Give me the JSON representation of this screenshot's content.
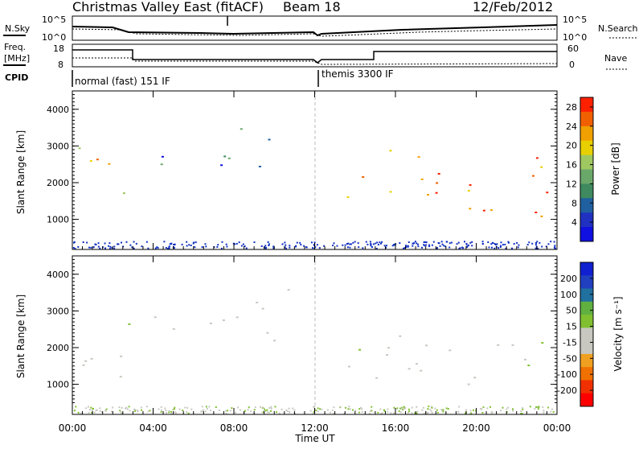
{
  "header": {
    "station": "Christmas Valley East (fitACF)",
    "beam": "Beam 18",
    "date": "12/Feb/2012"
  },
  "panel_labels": {
    "nsky": "N.Sky",
    "nsearch": "N.Search",
    "freq": "Freq.",
    "freq_unit": "[MHz]",
    "nave": "Nave",
    "cpid": "CPID",
    "cpid_first": "normal (fast) 151 IF",
    "cpid_second": "themis 3300 IF",
    "noise_top_left": "10^5",
    "noise_bot_left": "10^0",
    "noise_top_right": "10^5",
    "noise_bot_right": "10^0",
    "freq_top": "18",
    "freq_bot": "8",
    "nave_top": "60",
    "nave_bot": "0"
  },
  "colors": {
    "power": [
      "#1010e0",
      "#2030c0",
      "#2060a0",
      "#3f8a5f",
      "#6aa86a",
      "#a0c860",
      "#e8d000",
      "#f0a000",
      "#f06000",
      "#ff2000"
    ],
    "velocity": [
      "#1020d0",
      "#2040c0",
      "#2070a0",
      "#60b040",
      "#80c030",
      "#c8c8c0",
      "#c8c8c0",
      "#f0a020",
      "#f07000",
      "#f03000",
      "#ff0000"
    ]
  },
  "chart_data": [
    {
      "type": "heatmap",
      "ylabel": "Slant Range [km]",
      "xlabel": "Time UT",
      "y_ticks": [
        "1000",
        "2000",
        "3000",
        "4000"
      ],
      "x_ticks": [
        "00:00",
        "04:00",
        "08:00",
        "12:00",
        "16:00",
        "20:00",
        "00:00"
      ],
      "colorbar": {
        "label": "Power [dB]",
        "ticks": [
          "4",
          "8",
          "12",
          "16",
          "20",
          "24",
          "28"
        ],
        "range": [
          0,
          30
        ]
      },
      "regions": [
        {
          "t0": 0.3,
          "t1": 3.0,
          "r0": 1300,
          "r1": 3100,
          "value": 20
        },
        {
          "t0": 3.0,
          "t1": 5.0,
          "r0": 2100,
          "r1": 3000,
          "value": 8
        },
        {
          "t0": 6.0,
          "t1": 10.0,
          "r0": 2300,
          "r1": 3600,
          "value": 6
        },
        {
          "t0": 13.5,
          "t1": 15.0,
          "r0": 1300,
          "r1": 2500,
          "value": 18
        },
        {
          "t0": 15.0,
          "t1": 24.0,
          "r0": 1000,
          "r1": 2900,
          "value": 24
        }
      ]
    },
    {
      "type": "heatmap",
      "ylabel": "Slant Range [km]",
      "xlabel": "Time UT",
      "y_ticks": [
        "1000",
        "2000",
        "3000",
        "4000"
      ],
      "x_ticks": [
        "00:00",
        "04:00",
        "08:00",
        "12:00",
        "16:00",
        "20:00",
        "00:00"
      ],
      "colorbar": {
        "label": "Velocity [m s⁻¹]",
        "ticks": [
          "200",
          "100",
          "50",
          "15",
          "-15",
          "-50",
          "-100",
          "-200"
        ],
        "range": [
          -250,
          250
        ]
      },
      "regions": [
        {
          "t0": 0.3,
          "t1": 3.0,
          "r0": 1200,
          "r1": 3100,
          "value": 0
        },
        {
          "t0": 3.0,
          "t1": 5.0,
          "r0": 2100,
          "r1": 3000,
          "value": -20
        },
        {
          "t0": 6.0,
          "t1": 11.0,
          "r0": 2200,
          "r1": 3600,
          "value": -10
        },
        {
          "t0": 13.5,
          "t1": 15.0,
          "r0": 1300,
          "r1": 2500,
          "value": 40
        },
        {
          "t0": 15.0,
          "t1": 24.0,
          "r0": 1000,
          "r1": 2600,
          "value": 0
        }
      ]
    }
  ]
}
